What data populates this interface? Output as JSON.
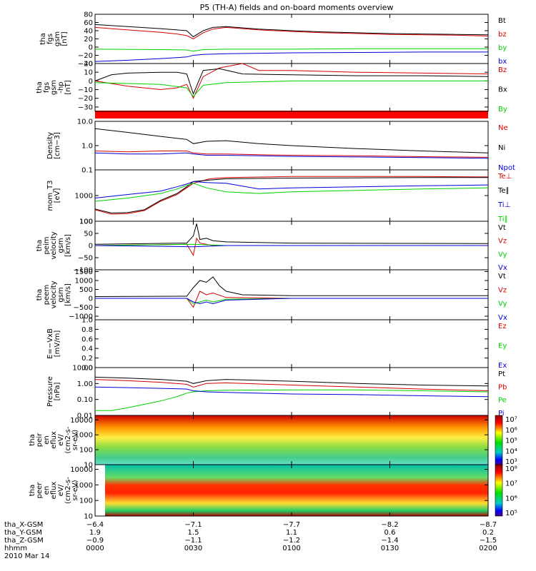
{
  "title": "P5 (TH-A) fields and on-board moments overview",
  "colors": {
    "black": "#000000",
    "red": "#d40000",
    "green": "#00d000",
    "blue": "#0000d8",
    "bar": "#ff0000"
  },
  "chart_data": [
    {
      "type": "line",
      "id": "fgs_gsm",
      "ylabel": [
        "tha",
        "fgs",
        "gsm",
        "[nT]"
      ],
      "ylim": [
        -40,
        80
      ],
      "yticks": [
        "80",
        "60",
        "40",
        "20",
        "0",
        "−20",
        "−40"
      ],
      "series": [
        {
          "name": "Bt",
          "color": "black",
          "x": [
            0,
            10,
            20,
            25,
            28,
            30,
            33,
            36,
            40,
            50,
            60,
            70,
            80,
            90,
            100,
            110,
            120
          ],
          "y": [
            55,
            50,
            45,
            42,
            40,
            25,
            40,
            48,
            50,
            44,
            40,
            37,
            35,
            33,
            32,
            31,
            30
          ]
        },
        {
          "name": "bz",
          "color": "red",
          "x": [
            0,
            10,
            20,
            25,
            28,
            30,
            33,
            36,
            40,
            50,
            60,
            70,
            80,
            90,
            100,
            110,
            120
          ],
          "y": [
            48,
            42,
            36,
            32,
            28,
            20,
            35,
            44,
            48,
            42,
            38,
            35,
            33,
            31,
            30,
            29,
            27
          ]
        },
        {
          "name": "by",
          "color": "green",
          "x": [
            0,
            20,
            28,
            30,
            33,
            40,
            60,
            80,
            100,
            120
          ],
          "y": [
            -5,
            -6,
            -7,
            -10,
            -6,
            -5,
            -5,
            -4,
            -4,
            -4
          ]
        },
        {
          "name": "bx",
          "color": "blue",
          "x": [
            0,
            10,
            20,
            28,
            30,
            33,
            40,
            60,
            80,
            100,
            120
          ],
          "y": [
            -35,
            -32,
            -28,
            -24,
            -20,
            -18,
            -16,
            -14,
            -13,
            -12,
            -12
          ]
        }
      ]
    },
    {
      "type": "line",
      "id": "fgs_hp",
      "ylabel": [
        "tha",
        "fgs",
        "gsm",
        "-hp",
        "[nT]"
      ],
      "ylim": [
        -35,
        20
      ],
      "yticks": [
        "20",
        "10",
        "0",
        "−10",
        "−20",
        "−30"
      ],
      "series": [
        {
          "name": "Bz",
          "color": "red",
          "x": [
            0,
            10,
            20,
            25,
            28,
            30,
            33,
            38,
            45,
            50,
            60,
            80,
            100,
            120
          ],
          "y": [
            0,
            -6,
            -10,
            -8,
            -4,
            -20,
            5,
            15,
            20,
            12,
            12,
            10,
            9,
            8
          ]
        },
        {
          "name": "Bx",
          "color": "black",
          "x": [
            0,
            5,
            10,
            20,
            25,
            28,
            30,
            33,
            38,
            45,
            60,
            80,
            100,
            120
          ],
          "y": [
            0,
            7,
            9,
            10,
            10,
            8,
            -15,
            12,
            14,
            8,
            7,
            6,
            6,
            5
          ]
        },
        {
          "name": "By",
          "color": "green",
          "x": [
            0,
            20,
            28,
            30,
            33,
            40,
            60,
            80,
            100,
            120
          ],
          "y": [
            -2,
            -4,
            -8,
            -18,
            -5,
            -2,
            0,
            0,
            0,
            0
          ]
        }
      ]
    },
    {
      "type": "line",
      "id": "density",
      "ylabel": [
        "Density",
        "[cm−3]"
      ],
      "yscale": "log",
      "ylim": [
        0.1,
        10
      ],
      "yticks": [
        "10.0",
        "1.0",
        "0.1"
      ],
      "series": [
        {
          "name": "Ne",
          "color": "red",
          "x": [
            0,
            10,
            20,
            28,
            30,
            34,
            40,
            50,
            60,
            80,
            100,
            120
          ],
          "y": [
            0.6,
            0.55,
            0.6,
            0.6,
            0.5,
            0.45,
            0.45,
            0.42,
            0.4,
            0.38,
            0.35,
            0.33
          ]
        },
        {
          "name": "Ni",
          "color": "black",
          "x": [
            0,
            10,
            20,
            28,
            30,
            34,
            40,
            50,
            60,
            80,
            100,
            120
          ],
          "y": [
            5,
            3.5,
            2.4,
            1.8,
            1.2,
            1.5,
            1.6,
            1.2,
            1.0,
            0.75,
            0.6,
            0.5
          ]
        },
        {
          "name": "Npot",
          "color": "blue",
          "x": [
            0,
            10,
            20,
            28,
            30,
            34,
            40,
            50,
            60,
            80,
            100,
            120
          ],
          "y": [
            0.5,
            0.45,
            0.45,
            0.5,
            0.45,
            0.4,
            0.4,
            0.38,
            0.36,
            0.34,
            0.32,
            0.3
          ]
        }
      ]
    },
    {
      "type": "line",
      "id": "temp",
      "ylabel": [
        "mom_T3",
        "[eV]"
      ],
      "yscale": "log",
      "ylim": [
        100,
        10000
      ],
      "yticks": [
        "1000",
        "100"
      ],
      "series": [
        {
          "name": "Te⊥",
          "color": "red",
          "x": [
            0,
            5,
            10,
            15,
            20,
            25,
            28,
            30,
            35,
            40,
            60,
            80,
            100,
            120
          ],
          "y": [
            280,
            190,
            200,
            260,
            600,
            1100,
            2000,
            3000,
            4500,
            5000,
            5500,
            5500,
            5500,
            5300
          ]
        },
        {
          "name": "Te∥",
          "color": "black",
          "x": [
            0,
            5,
            10,
            15,
            20,
            25,
            28,
            30,
            35,
            40,
            60,
            80,
            100,
            120
          ],
          "y": [
            300,
            210,
            220,
            280,
            650,
            1200,
            2200,
            3500,
            4000,
            4500,
            4800,
            4900,
            5000,
            5000
          ]
        },
        {
          "name": "Ti⊥",
          "color": "blue",
          "x": [
            0,
            10,
            20,
            25,
            28,
            30,
            34,
            40,
            50,
            60,
            80,
            100,
            120
          ],
          "y": [
            800,
            1100,
            1500,
            2200,
            2800,
            3500,
            3200,
            3000,
            1800,
            2000,
            2200,
            2400,
            2600
          ]
        },
        {
          "name": "Ti∥",
          "color": "green",
          "x": [
            0,
            10,
            20,
            25,
            28,
            30,
            34,
            40,
            50,
            60,
            80,
            100,
            120
          ],
          "y": [
            600,
            800,
            1200,
            1800,
            2500,
            3000,
            2000,
            1400,
            1200,
            1400,
            1600,
            1800,
            2000
          ]
        }
      ]
    },
    {
      "type": "line",
      "id": "peim_vel",
      "ylabel": [
        "tha",
        "peim",
        "velocity",
        "gsm",
        "[km/s]"
      ],
      "ylim": [
        -100,
        100
      ],
      "yticks": [
        "100",
        "50",
        "0",
        "−50",
        "−100"
      ],
      "series": [
        {
          "name": "Vt",
          "color": "black",
          "x": [
            0,
            28,
            30,
            31,
            32,
            34,
            36,
            40,
            60,
            120
          ],
          "y": [
            5,
            10,
            40,
            90,
            25,
            30,
            20,
            15,
            10,
            8
          ]
        },
        {
          "name": "Vz",
          "color": "red",
          "x": [
            0,
            28,
            30,
            31,
            32,
            34,
            36,
            40,
            120
          ],
          "y": [
            0,
            5,
            -40,
            30,
            10,
            5,
            0,
            0,
            0
          ]
        },
        {
          "name": "Vy",
          "color": "green",
          "x": [
            0,
            30,
            40,
            120
          ],
          "y": [
            0,
            5,
            0,
            0
          ]
        },
        {
          "name": "Vx",
          "color": "blue",
          "x": [
            0,
            30,
            40,
            120
          ],
          "y": [
            0,
            -5,
            0,
            0
          ]
        }
      ]
    },
    {
      "type": "line",
      "id": "peem_vel",
      "ylabel": [
        "tha",
        "peem",
        "velocity",
        "gsm",
        "[km/s]"
      ],
      "ylim": [
        -1200,
        1600
      ],
      "yticks": [
        "1500",
        "1000",
        "500",
        "0",
        "−500",
        "−1000"
      ],
      "series": [
        {
          "name": "Vt",
          "color": "black",
          "x": [
            0,
            28,
            30,
            32,
            34,
            36,
            38,
            40,
            45,
            60,
            120
          ],
          "y": [
            100,
            120,
            600,
            1000,
            900,
            1200,
            700,
            400,
            200,
            150,
            150
          ]
        },
        {
          "name": "Vz",
          "color": "red",
          "x": [
            0,
            28,
            30,
            32,
            34,
            36,
            40,
            60,
            120
          ],
          "y": [
            0,
            0,
            -500,
            400,
            200,
            300,
            50,
            0,
            0
          ]
        },
        {
          "name": "Vy",
          "color": "green",
          "x": [
            0,
            28,
            30,
            32,
            34,
            36,
            40,
            60,
            120
          ],
          "y": [
            0,
            0,
            -300,
            -200,
            -100,
            -200,
            -50,
            0,
            0
          ]
        },
        {
          "name": "Vx",
          "color": "blue",
          "x": [
            0,
            28,
            30,
            32,
            34,
            36,
            40,
            60,
            120
          ],
          "y": [
            0,
            0,
            -200,
            -300,
            -200,
            -300,
            -100,
            0,
            0
          ]
        }
      ]
    },
    {
      "type": "line",
      "id": "exb",
      "ylabel": [
        "E=−VxB",
        "[mV/m]"
      ],
      "ylim": [
        0,
        1
      ],
      "yticks": [
        "1.0",
        "0.8",
        "0.6",
        "0.4",
        "0.2",
        "0.0"
      ],
      "series": [
        {
          "name": "Ez",
          "color": "red",
          "x": [],
          "y": []
        },
        {
          "name": "Ey",
          "color": "green",
          "x": [],
          "y": []
        },
        {
          "name": "Ex",
          "color": "blue",
          "x": [],
          "y": []
        }
      ]
    },
    {
      "type": "line",
      "id": "pressure",
      "ylabel": [
        "Pressure",
        "[nPa]"
      ],
      "yscale": "log",
      "ylim": [
        0.01,
        10
      ],
      "yticks": [
        "10.00",
        "1.00",
        "0.10",
        "0.01"
      ],
      "series": [
        {
          "name": "Pt",
          "color": "black",
          "x": [
            0,
            10,
            20,
            28,
            30,
            34,
            40,
            60,
            80,
            100,
            120
          ],
          "y": [
            2.5,
            2.2,
            1.8,
            1.4,
            1.0,
            1.5,
            1.8,
            1.4,
            1.0,
            0.8,
            0.7
          ]
        },
        {
          "name": "Pb",
          "color": "red",
          "x": [
            0,
            10,
            20,
            28,
            30,
            34,
            40,
            60,
            80,
            100,
            120
          ],
          "y": [
            1.8,
            1.5,
            1.2,
            0.9,
            0.6,
            1.0,
            1.1,
            0.8,
            0.6,
            0.45,
            0.35
          ]
        },
        {
          "name": "Pe",
          "color": "green",
          "x": [
            0,
            5,
            10,
            20,
            25,
            28,
            30,
            34,
            40,
            60,
            80,
            100,
            120
          ],
          "y": [
            0.02,
            0.02,
            0.03,
            0.08,
            0.15,
            0.25,
            0.3,
            0.35,
            0.38,
            0.4,
            0.4,
            0.35,
            0.3
          ]
        },
        {
          "name": "Pi",
          "color": "blue",
          "x": [
            0,
            10,
            20,
            28,
            30,
            34,
            40,
            60,
            80,
            100,
            120
          ],
          "y": [
            0.6,
            0.55,
            0.5,
            0.45,
            0.35,
            0.3,
            0.28,
            0.22,
            0.2,
            0.17,
            0.15
          ]
        }
      ]
    },
    {
      "type": "heatmap",
      "id": "peir",
      "ylabel": [
        "tha",
        "peir",
        "en",
        "eflux",
        "eV/",
        "(cm2-s-",
        "sr-eV)"
      ],
      "yscale": "log",
      "ylim": [
        10,
        20000
      ],
      "yticks": [
        "10000",
        "1000",
        "100",
        "10"
      ],
      "colorbar_ticks": [
        "10⁷",
        "10⁶",
        "10⁵",
        "10⁴",
        "10³"
      ]
    },
    {
      "type": "heatmap",
      "id": "peer",
      "ylabel": [
        "tha",
        "peer",
        "en",
        "eflux",
        "eV/",
        "(cm2-s-",
        "sr-eV)"
      ],
      "yscale": "log",
      "ylim": [
        10,
        20000
      ],
      "yticks": [
        "10000",
        "1000",
        "100",
        "10"
      ],
      "colorbar_ticks": [
        "10⁸",
        "10⁷",
        "10⁶",
        "10⁵"
      ]
    }
  ],
  "xaxis": {
    "rows": [
      {
        "label": "tha_X-GSM",
        "values": [
          "−6.4",
          "−7.1",
          "−7.7",
          "−8.2",
          "−8.7"
        ]
      },
      {
        "label": "tha_Y-GSM",
        "values": [
          "1.9",
          "1.5",
          "1.1",
          "0.6",
          "0.2"
        ]
      },
      {
        "label": "tha_Z-GSM",
        "values": [
          "−0.9",
          "−1.1",
          "−1.2",
          "−1.4",
          "−1.5"
        ]
      },
      {
        "label": "hhmm",
        "values": [
          "0000",
          "0030",
          "0100",
          "0130",
          "0200"
        ]
      }
    ],
    "date": "2010 Mar 14"
  }
}
